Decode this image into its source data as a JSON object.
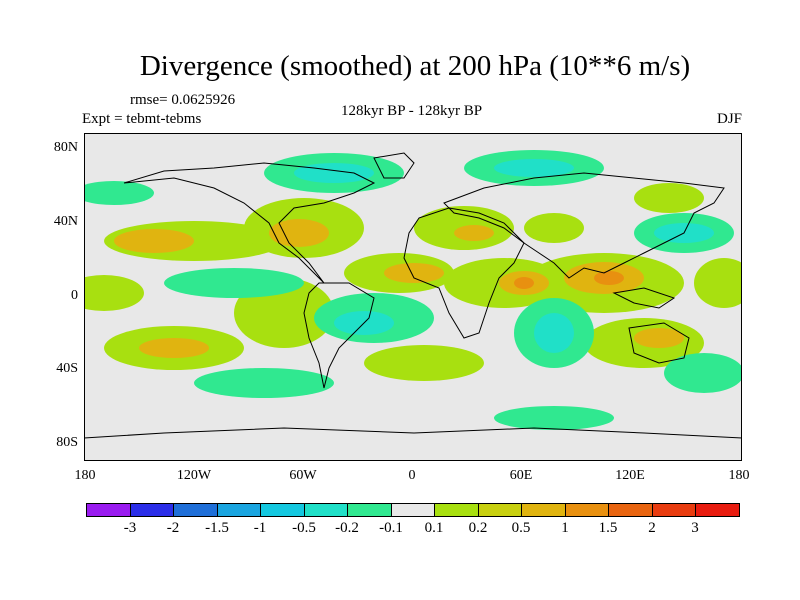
{
  "title": "Divergence (smoothed) at 200 hPa (10**6 m/s)",
  "rmse": "rmse= 0.0625926",
  "expt": "Expt = tebmt-tebms",
  "subtitle": "128kyr BP - 128kyr BP",
  "season": "DJF",
  "lat_labels": [
    "80N",
    "40N",
    "0",
    "40S",
    "80S"
  ],
  "lon_labels": [
    "180",
    "120W",
    "60W",
    "0",
    "60E",
    "120E",
    "180"
  ],
  "colorbar": {
    "colors": [
      "#9a1cf0",
      "#2b2ee8",
      "#1f6fd8",
      "#1aa5e0",
      "#14c8e0",
      "#20e0c8",
      "#30e890",
      "#e8e8e8",
      "#a8e010",
      "#c8d010",
      "#e0b410",
      "#e89010",
      "#e86410",
      "#e83c10",
      "#e81c10"
    ],
    "labels": [
      "-3",
      "-2",
      "-1.5",
      "-1",
      "-0.5",
      "-0.2",
      "-0.1",
      "0.1",
      "0.2",
      "0.5",
      "1",
      "1.5",
      "2",
      "3"
    ]
  }
}
